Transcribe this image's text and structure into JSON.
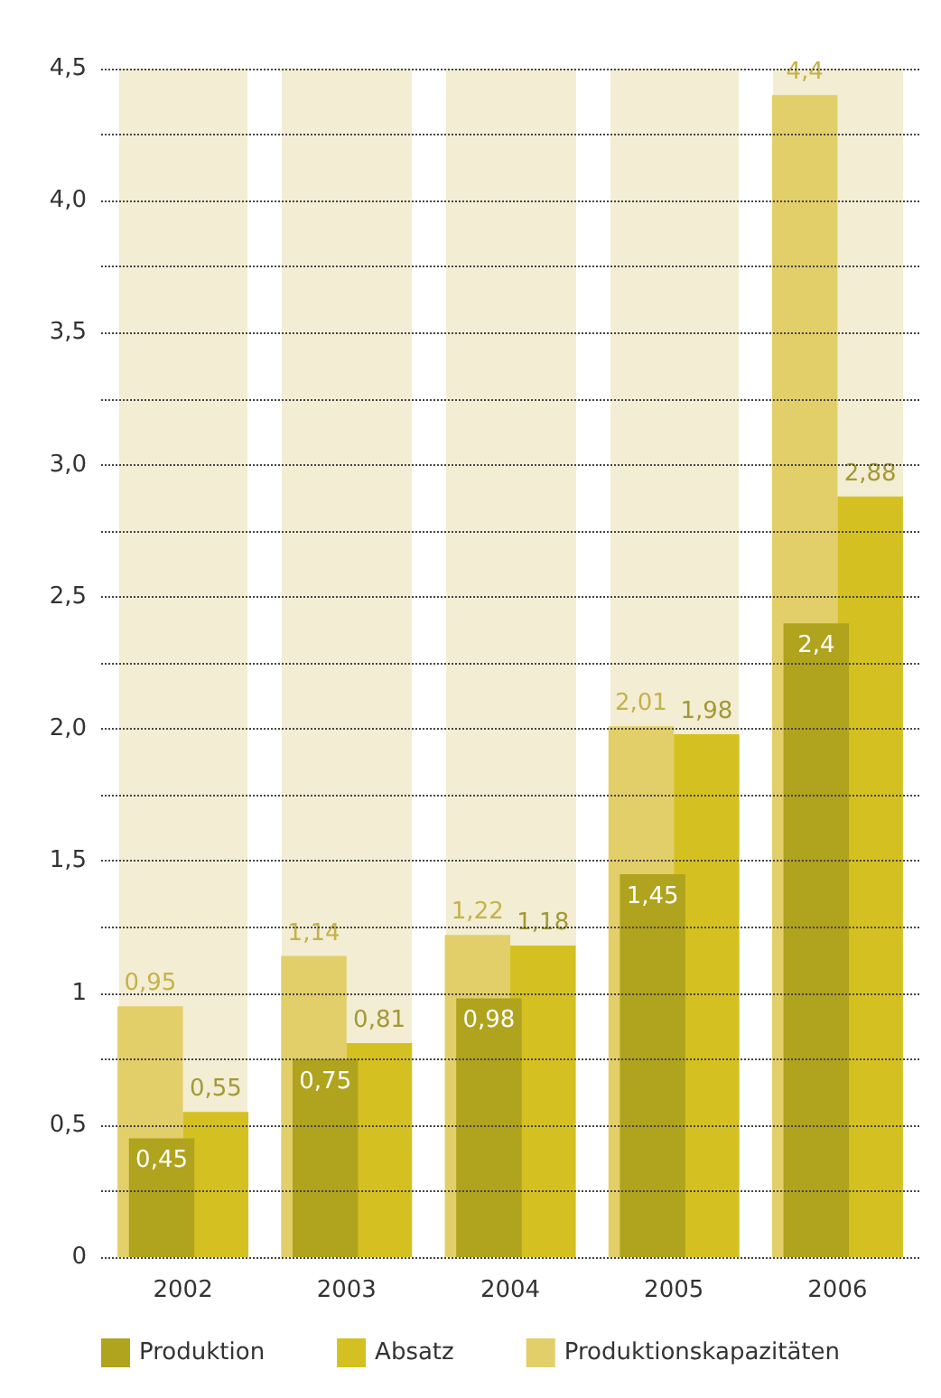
{
  "chart_data": {
    "type": "bar",
    "categories": [
      "2002",
      "2003",
      "2004",
      "2005",
      "2006"
    ],
    "series": [
      {
        "name": "Produktionskapazitäten",
        "color": "#e2cf6a",
        "values": [
          0.95,
          1.14,
          1.22,
          2.01,
          4.4
        ],
        "value_labels": [
          "0,95",
          "1,14",
          "1,22",
          "2,01",
          "4,4"
        ]
      },
      {
        "name": "Absatz",
        "color": "#d4c121",
        "values": [
          0.55,
          0.81,
          1.18,
          1.98,
          2.88
        ],
        "value_labels": [
          "0,55",
          "0,81",
          "1,18",
          "1,98",
          "2,88"
        ]
      },
      {
        "name": "Produktion",
        "color": "#b0a31d",
        "values": [
          0.45,
          0.75,
          0.98,
          1.45,
          2.4
        ],
        "value_labels": [
          "0,45",
          "0,75",
          "0,98",
          "1,45",
          "2,4"
        ]
      }
    ],
    "ylim": [
      0,
      4.5
    ],
    "yticks": [
      0,
      {
        "value": 0.25,
        "label": null
      },
      {
        "value": 0.5,
        "label": "0,5"
      },
      {
        "value": 0.75,
        "label": null
      },
      1,
      {
        "value": 1.25,
        "label": null
      },
      {
        "value": 1.5,
        "label": "1,5"
      },
      {
        "value": 1.75,
        "label": null
      },
      {
        "value": 2,
        "label": "2,0"
      },
      {
        "value": 2.25,
        "label": null
      },
      {
        "value": 2.5,
        "label": "2,5"
      },
      {
        "value": 2.75,
        "label": null
      },
      {
        "value": 3,
        "label": "3,0"
      },
      {
        "value": 3.25,
        "label": null
      },
      {
        "value": 3.5,
        "label": "3,5"
      },
      {
        "value": 3.75,
        "label": null
      },
      {
        "value": 4,
        "label": "4,0"
      },
      {
        "value": 4.25,
        "label": null
      },
      {
        "value": 4.5,
        "label": "4,5"
      }
    ],
    "grid": "y",
    "legend": "bottom"
  }
}
